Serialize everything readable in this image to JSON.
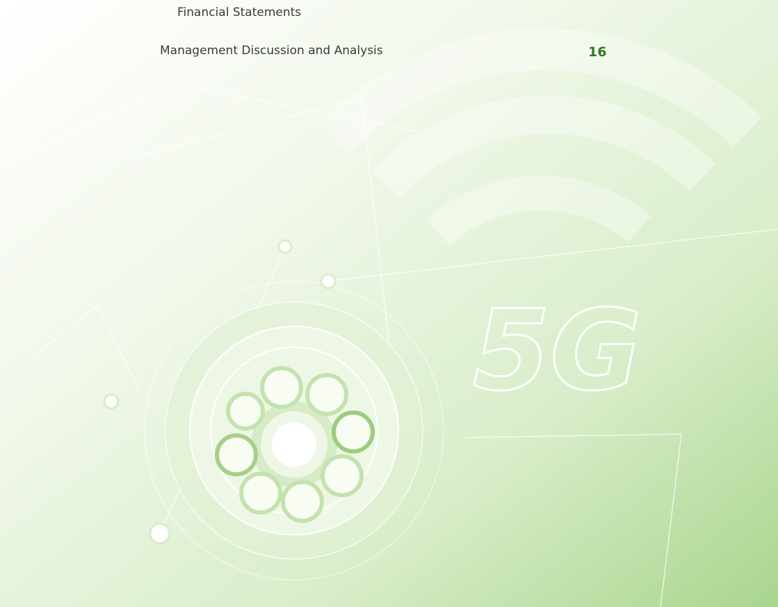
{
  "contents": [
    {
      "title": "Financial Statements"
    },
    {
      "title": "Management Discussion and Analysis",
      "page": "16"
    }
  ],
  "graphic_text": "5G"
}
